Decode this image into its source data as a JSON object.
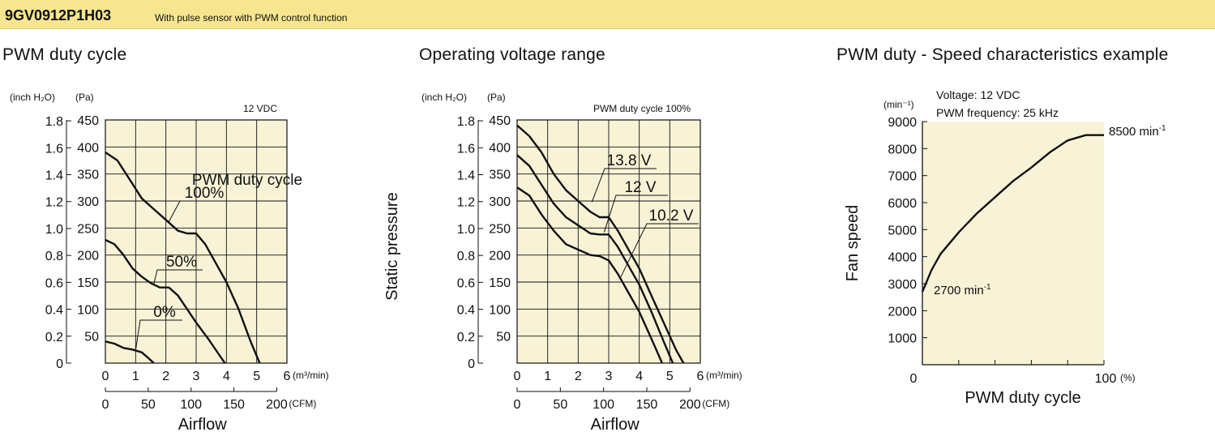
{
  "header": {
    "model": "9GV0912P1H03",
    "description": "With pulse sensor with PWM control function"
  },
  "colors": {
    "header_bg": "#f7e68f",
    "plot_bg": "#f8f3d6",
    "line": "#111111"
  },
  "chart_data": [
    {
      "type": "line",
      "title": "PWM duty cycle",
      "note": "12 VDC",
      "y_unit_inch": "(inch H₂O)",
      "y_unit_pa": "(Pa)",
      "ylabel": "Static pressure",
      "xlabel": "Airflow",
      "x_unit_m3": "(m³/min)",
      "x_unit_cfm": "(CFM)",
      "ylim": [
        0,
        450
      ],
      "xlim": [
        0,
        6
      ],
      "grid": true,
      "y_ticks_pa": [
        "450",
        "400",
        "350",
        "300",
        "250",
        "200",
        "150",
        "100",
        "50"
      ],
      "y_ticks_inch": [
        "1.8",
        "1.6",
        "1.4",
        "1.2",
        "1.0",
        "0.8",
        "0.6",
        "0.4",
        "0.2",
        "0"
      ],
      "x_ticks_m3": [
        "0",
        "1",
        "2",
        "3",
        "4",
        "5",
        "6"
      ],
      "x_ticks_cfm": [
        "0",
        "50",
        "100",
        "150",
        "200"
      ],
      "legend_title": "PWM duty cycle",
      "series": [
        {
          "name": "100%",
          "x": [
            0,
            0.4,
            0.8,
            1.2,
            1.6,
            2.0,
            2.4,
            2.7,
            3.0,
            3.3,
            3.6,
            4.0,
            4.4,
            4.8,
            5.1
          ],
          "y": [
            390,
            375,
            340,
            305,
            285,
            265,
            245,
            240,
            240,
            220,
            190,
            150,
            100,
            40,
            0
          ]
        },
        {
          "name": "50%",
          "x": [
            0,
            0.3,
            0.6,
            0.9,
            1.2,
            1.5,
            1.8,
            2.1,
            2.4,
            2.7,
            3.0,
            3.4,
            3.8,
            3.95
          ],
          "y": [
            228,
            220,
            200,
            175,
            160,
            148,
            140,
            140,
            125,
            100,
            75,
            45,
            12,
            0
          ]
        },
        {
          "name": "0%",
          "x": [
            0,
            0.3,
            0.6,
            0.9,
            1.2,
            1.45,
            1.6
          ],
          "y": [
            40,
            36,
            28,
            25,
            20,
            8,
            0
          ]
        }
      ]
    },
    {
      "type": "line",
      "title": "Operating voltage range",
      "note": "PWM duty cycle 100%",
      "y_unit_inch": "(inch H₂O)",
      "y_unit_pa": "(Pa)",
      "ylabel": "Static pressure",
      "xlabel": "Airflow",
      "x_unit_m3": "(m³/min)",
      "x_unit_cfm": "(CFM)",
      "ylim": [
        0,
        450
      ],
      "xlim": [
        0,
        6
      ],
      "grid": true,
      "y_ticks_pa": [
        "450",
        "400",
        "350",
        "300",
        "250",
        "200",
        "150",
        "100",
        "50"
      ],
      "y_ticks_inch": [
        "1.8",
        "1.6",
        "1.4",
        "1.2",
        "1.0",
        "0.8",
        "0.6",
        "0.4",
        "0.2",
        "0"
      ],
      "x_ticks_m3": [
        "0",
        "1",
        "2",
        "3",
        "4",
        "5",
        "6"
      ],
      "x_ticks_cfm": [
        "0",
        "50",
        "100",
        "150",
        "200"
      ],
      "series": [
        {
          "name": "13.8 V",
          "x": [
            0,
            0.4,
            0.8,
            1.2,
            1.6,
            2.0,
            2.4,
            2.7,
            3.0,
            3.3,
            3.6,
            4.0,
            4.4,
            4.8,
            5.2,
            5.45
          ],
          "y": [
            440,
            420,
            390,
            350,
            320,
            300,
            280,
            270,
            270,
            245,
            215,
            175,
            125,
            75,
            25,
            0
          ]
        },
        {
          "name": "12 V",
          "x": [
            0,
            0.4,
            0.8,
            1.2,
            1.6,
            2.0,
            2.4,
            2.7,
            3.0,
            3.3,
            3.6,
            4.0,
            4.4,
            4.8,
            5.1
          ],
          "y": [
            385,
            365,
            330,
            295,
            270,
            255,
            240,
            238,
            238,
            215,
            185,
            145,
            95,
            40,
            0
          ]
        },
        {
          "name": "10.2 V",
          "x": [
            0,
            0.4,
            0.8,
            1.2,
            1.6,
            2.0,
            2.4,
            2.7,
            3.0,
            3.3,
            3.6,
            4.0,
            4.4,
            4.75
          ],
          "y": [
            325,
            310,
            275,
            245,
            220,
            210,
            200,
            198,
            190,
            165,
            135,
            95,
            45,
            0
          ]
        }
      ]
    },
    {
      "type": "line",
      "title": "PWM duty - Speed characteristics example",
      "notes": [
        "Voltage: 12 VDC",
        "PWM frequency: 25 kHz"
      ],
      "y_unit": "(min⁻¹)",
      "ylabel": "Fan speed",
      "xlabel": "PWM duty cycle",
      "x_unit": "(%)",
      "ylim": [
        0,
        9000
      ],
      "xlim": [
        0,
        100
      ],
      "grid": false,
      "y_ticks": [
        "9000",
        "8000",
        "7000",
        "6000",
        "5000",
        "4000",
        "3000",
        "2000",
        "1000",
        "0"
      ],
      "x_ticks": [
        "0",
        "100"
      ],
      "annotations": {
        "max_value": "8500",
        "min_value": "2700",
        "unit": "min",
        "unit_sup": "-1"
      },
      "series": [
        {
          "x": [
            0,
            5,
            10,
            20,
            30,
            40,
            50,
            60,
            70,
            80,
            90,
            94,
            100
          ],
          "y": [
            2700,
            3500,
            4100,
            4900,
            5600,
            6200,
            6800,
            7300,
            7850,
            8300,
            8500,
            8500,
            8500
          ]
        }
      ]
    }
  ]
}
